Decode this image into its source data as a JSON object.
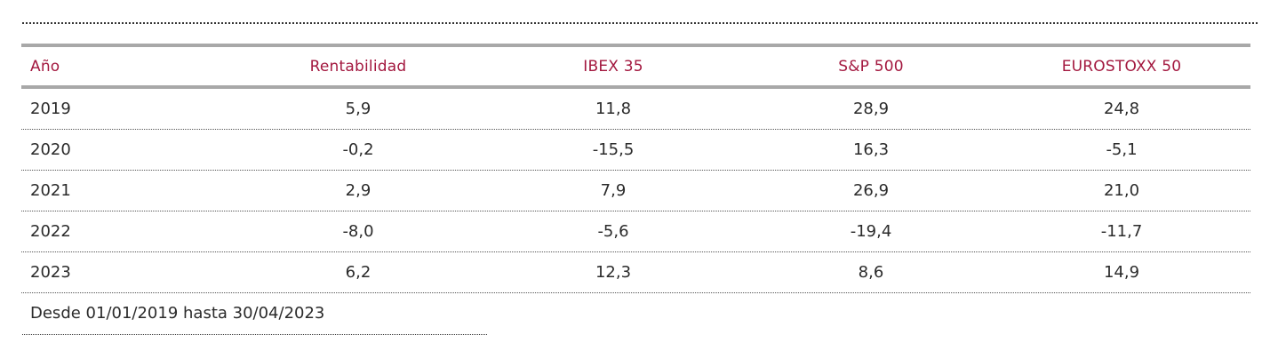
{
  "table": {
    "headers": [
      "Año",
      "Rentabilidad",
      "IBEX 35",
      "S&P 500",
      "EUROSTOXX 50"
    ],
    "rows": [
      [
        "2019",
        "5,9",
        "11,8",
        "28,9",
        "24,8"
      ],
      [
        "2020",
        "-0,2",
        "-15,5",
        "16,3",
        "-5,1"
      ],
      [
        "2021",
        "2,9",
        "7,9",
        "26,9",
        "21,0"
      ],
      [
        "2022",
        "-8,0",
        "-5,6",
        "-19,4",
        "-11,7"
      ],
      [
        "2023",
        "6,2",
        "12,3",
        "8,6",
        "14,9"
      ]
    ]
  },
  "footer": {
    "note": "Desde 01/01/2019 hasta 30/04/2023"
  },
  "colors": {
    "header_text": "#a3183f",
    "rule": "#a8a8a8"
  }
}
